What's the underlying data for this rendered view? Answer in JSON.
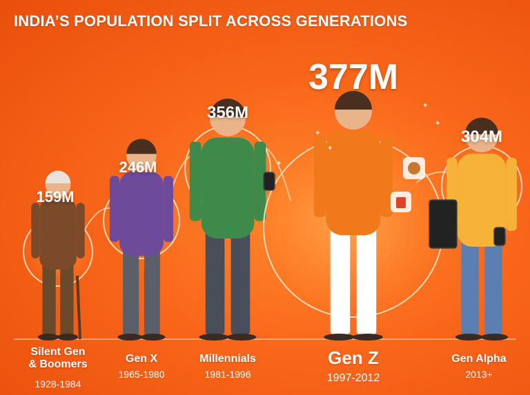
{
  "title": "INDIA’S POPULATION SPLIT ACROSS GENERATIONS",
  "colors": {
    "background": "#f9661a",
    "circle_glow": "#ffb066",
    "text": "#ffffff"
  },
  "chart_data": {
    "type": "bar",
    "title": "INDIA’S POPULATION SPLIT ACROSS GENERATIONS",
    "categories": [
      "Silent Gen & Boomers",
      "Gen X",
      "Millennials",
      "Gen Z",
      "Gen Alpha"
    ],
    "years": [
      "1928-1984",
      "1965-1980",
      "1981-1996",
      "1997-2012",
      "2013+"
    ],
    "values": [
      159,
      246,
      356,
      377,
      304
    ],
    "value_labels": [
      "159M",
      "246M",
      "356M",
      "377M",
      "304M"
    ],
    "unit": "M",
    "highlight": "Gen Z",
    "icons": [
      "elderly-man-with-cane",
      "walking-woman",
      "man-with-phone",
      "young-man-with-phone",
      "boy-with-phone"
    ]
  },
  "gen_labels": {
    "silent_line1": "Silent Gen",
    "silent_line2": "& Boomers"
  }
}
